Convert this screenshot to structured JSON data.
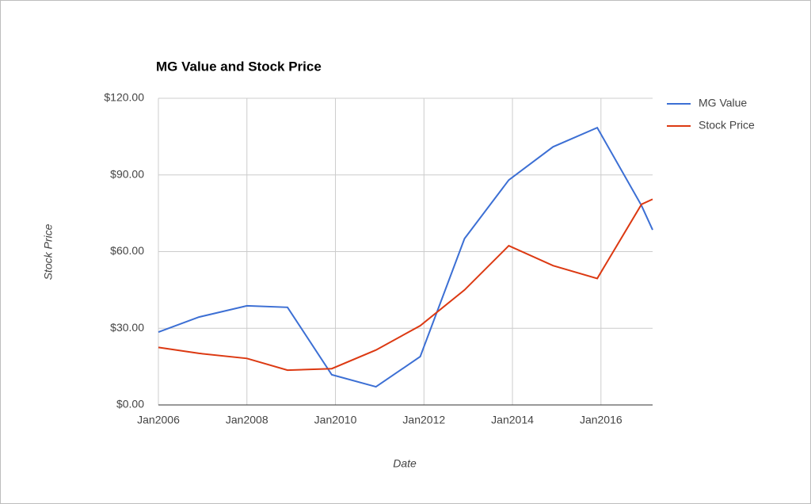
{
  "chart_data": {
    "type": "line",
    "title": "MG Value and Stock Price",
    "x_label": "Date",
    "y_label": "Stock Price",
    "x": [
      "2006-01",
      "2006-12",
      "2008-01",
      "2008-12",
      "2009-12",
      "2010-12",
      "2011-12",
      "2012-12",
      "2013-12",
      "2014-12",
      "2015-12",
      "2016-12",
      "2017-03"
    ],
    "series": [
      {
        "name": "MG Value",
        "color": "#3c6fd4",
        "values": [
          28.5,
          34.4,
          38.8,
          38.2,
          11.8,
          7.1,
          18.9,
          65.1,
          88,
          101,
          108.5,
          78,
          68.5
        ]
      },
      {
        "name": "Stock Price",
        "color": "#dc3912",
        "values": [
          22.5,
          20.2,
          18.2,
          13.6,
          14.2,
          21.5,
          31,
          45,
          62.3,
          54.5,
          49.5,
          78.5,
          80.5
        ]
      }
    ],
    "xlim": [
      "2006-01",
      "2017-03"
    ],
    "xticks": [
      {
        "value": "2006-01",
        "label": "Jan2006"
      },
      {
        "value": "2008-01",
        "label": "Jan2008"
      },
      {
        "value": "2010-01",
        "label": "Jan2010"
      },
      {
        "value": "2012-01",
        "label": "Jan2012"
      },
      {
        "value": "2014-01",
        "label": "Jan2014"
      },
      {
        "value": "2016-01",
        "label": "Jan2016"
      }
    ],
    "ylim": [
      0,
      120
    ],
    "yticks": [
      {
        "value": 0,
        "label": "$0.00"
      },
      {
        "value": 30,
        "label": "$30.00"
      },
      {
        "value": 60,
        "label": "$60.00"
      },
      {
        "value": 90,
        "label": "$90.00"
      },
      {
        "value": 120,
        "label": "$120.00"
      }
    ],
    "grid": true,
    "legend": "right"
  }
}
